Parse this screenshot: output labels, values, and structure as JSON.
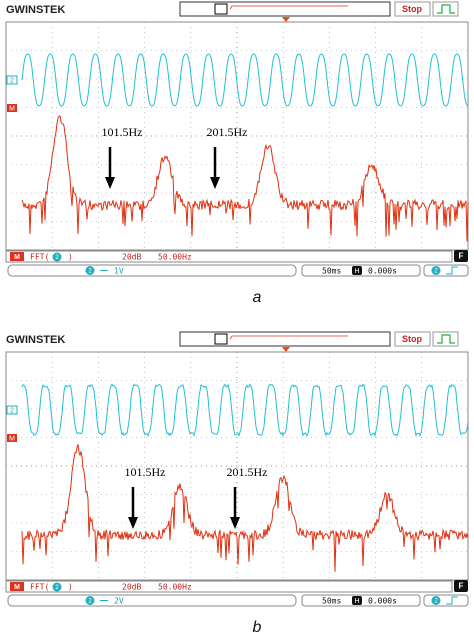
{
  "panels": [
    {
      "brand": "GWINSTEK",
      "stop": "Stop",
      "ch2_marker": "2",
      "math_marker": "M",
      "annotations": [
        "101.5Hz",
        "201.5Hz"
      ],
      "status": {
        "math": "M",
        "fft": "FFT(",
        "fft_ch": "2",
        "fft_close": ")",
        "scale": "20dB",
        "freq": "50.00Hz",
        "ch": "2",
        "volts": "1V",
        "timebase": "50ms",
        "h": "H",
        "delay": "0.000s",
        "trig_ch": "2",
        "f": "F"
      },
      "caption": "a"
    },
    {
      "brand": "GWINSTEK",
      "stop": "Stop",
      "ch2_marker": "2",
      "math_marker": "M",
      "annotations": [
        "101.5Hz",
        "201.5Hz"
      ],
      "status": {
        "math": "M",
        "fft": "FFT(",
        "fft_ch": "2",
        "fft_close": ")",
        "scale": "20dB",
        "freq": "50.00Hz",
        "ch": "2",
        "volts": "2V",
        "timebase": "50ms",
        "h": "H",
        "delay": "0.000s",
        "trig_ch": "2",
        "f": "F"
      },
      "caption": "b"
    }
  ]
}
